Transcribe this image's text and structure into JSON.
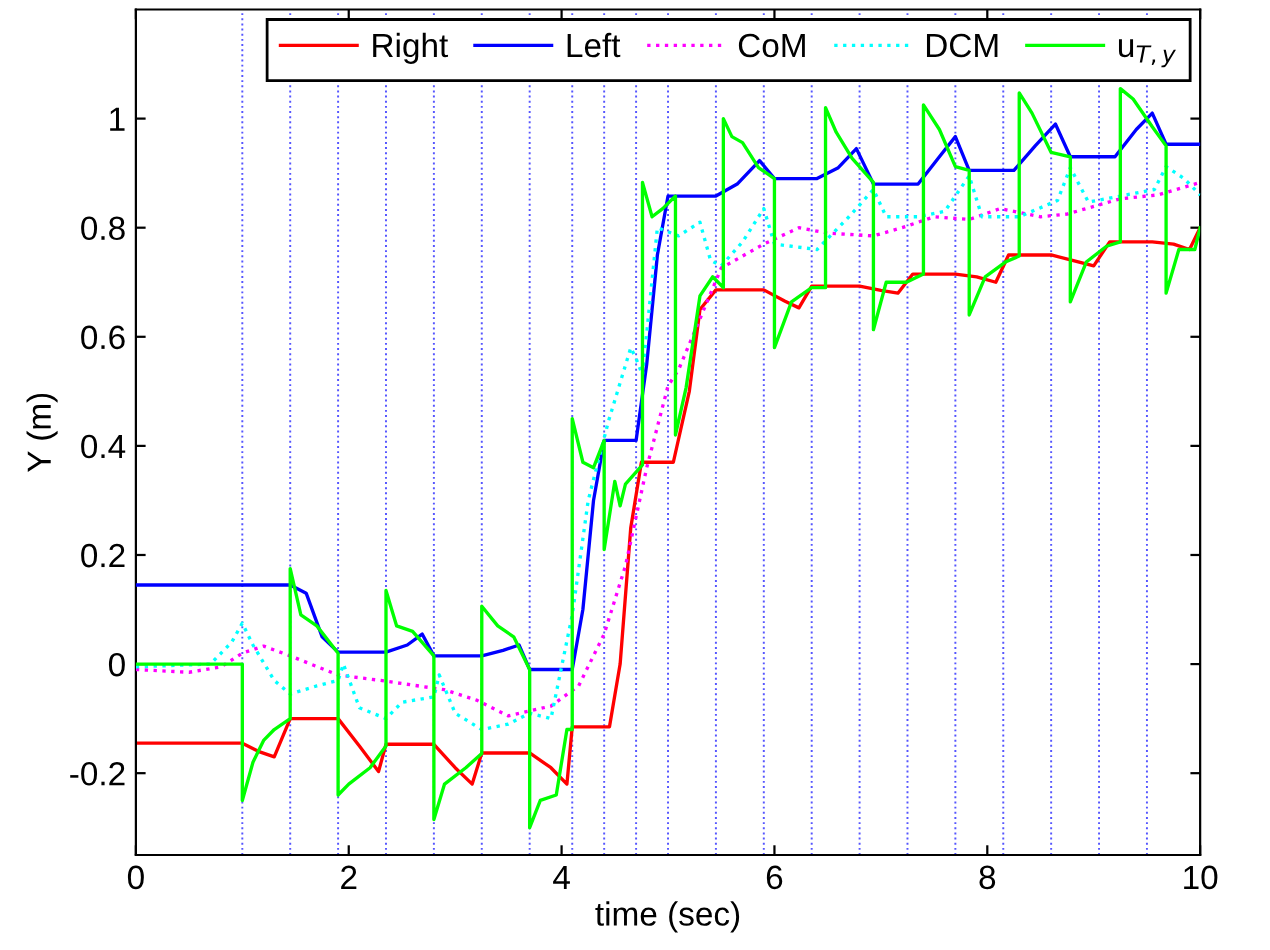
{
  "chart_data": {
    "type": "line",
    "xlabel": "time (sec)",
    "ylabel": "Y (m)",
    "xlim": [
      0,
      10
    ],
    "ylim": [
      -0.35,
      1.2
    ],
    "xticks": [
      0,
      2,
      4,
      6,
      8,
      10
    ],
    "yticks": [
      -0.2,
      0,
      0.2,
      0.4,
      0.6,
      0.8,
      1
    ],
    "grid": false,
    "legend": "top right",
    "marker": "none",
    "series": [
      {
        "name": "Right",
        "color": "#ff0000",
        "line_style": "solid",
        "x": [
          0,
          1.0,
          1.15,
          1.3,
          1.45,
          1.9,
          2.1,
          2.28,
          2.35,
          2.8,
          3.0,
          3.16,
          3.25,
          3.7,
          3.9,
          4.05,
          4.1,
          4.45,
          4.55,
          4.65,
          4.75,
          5.05,
          5.2,
          5.3,
          5.45,
          5.9,
          6.1,
          6.23,
          6.35,
          6.8,
          7.0,
          7.16,
          7.3,
          7.7,
          7.9,
          8.08,
          8.2,
          8.6,
          8.8,
          9.0,
          9.15,
          9.55,
          9.75,
          9.9,
          10
        ],
        "values": [
          -0.145,
          -0.145,
          -0.16,
          -0.17,
          -0.1,
          -0.1,
          -0.15,
          -0.197,
          -0.147,
          -0.147,
          -0.19,
          -0.22,
          -0.163,
          -0.163,
          -0.19,
          -0.22,
          -0.115,
          -0.115,
          0.0,
          0.25,
          0.37,
          0.37,
          0.5,
          0.65,
          0.686,
          0.686,
          0.665,
          0.653,
          0.693,
          0.693,
          0.685,
          0.68,
          0.715,
          0.715,
          0.71,
          0.7,
          0.75,
          0.75,
          0.74,
          0.73,
          0.774,
          0.774,
          0.77,
          0.76,
          0.8
        ]
      },
      {
        "name": "Left",
        "color": "#0000ff",
        "line_style": "solid",
        "x": [
          0,
          1.45,
          1.6,
          1.75,
          1.9,
          2.35,
          2.55,
          2.69,
          2.8,
          3.25,
          3.45,
          3.6,
          3.7,
          4.1,
          4.2,
          4.3,
          4.4,
          4.7,
          4.8,
          4.9,
          5.0,
          5.45,
          5.65,
          5.86,
          6.0,
          6.4,
          6.6,
          6.77,
          6.93,
          7.35,
          7.55,
          7.7,
          7.83,
          8.25,
          8.45,
          8.64,
          8.78,
          9.2,
          9.4,
          9.55,
          9.68,
          10
        ],
        "values": [
          0.145,
          0.145,
          0.13,
          0.05,
          0.022,
          0.022,
          0.035,
          0.055,
          0.015,
          0.015,
          0.025,
          0.035,
          -0.01,
          -0.01,
          0.1,
          0.3,
          0.41,
          0.41,
          0.55,
          0.75,
          0.858,
          0.858,
          0.88,
          0.923,
          0.89,
          0.89,
          0.91,
          0.945,
          0.88,
          0.88,
          0.93,
          0.967,
          0.905,
          0.905,
          0.95,
          0.99,
          0.93,
          0.93,
          0.98,
          1.01,
          0.953,
          0.953
        ]
      },
      {
        "name": "CoM",
        "color": "#ff00ff",
        "line_style": "dotted",
        "x": [
          0,
          0.5,
          0.8,
          1.0,
          1.2,
          1.45,
          1.9,
          2.3,
          2.9,
          3.2,
          3.5,
          3.9,
          4.16,
          4.4,
          4.6,
          4.8,
          5.0,
          5.1,
          5.5,
          5.9,
          6.23,
          6.5,
          6.93,
          7.2,
          7.5,
          7.83,
          8.12,
          8.5,
          8.75,
          9.25,
          9.6,
          10
        ],
        "values": [
          -0.01,
          -0.015,
          -0.005,
          0.02,
          0.033,
          0.015,
          -0.02,
          -0.03,
          -0.047,
          -0.066,
          -0.095,
          -0.077,
          -0.04,
          0.055,
          0.18,
          0.36,
          0.51,
          0.54,
          0.726,
          0.77,
          0.8,
          0.79,
          0.785,
          0.8,
          0.82,
          0.815,
          0.835,
          0.82,
          0.825,
          0.853,
          0.86,
          0.883
        ]
      },
      {
        "name": "DCM",
        "color": "#00ffff",
        "line_style": "dotted",
        "x": [
          0,
          0.7,
          0.9,
          1.0,
          1.1,
          1.3,
          1.45,
          1.7,
          1.9,
          1.95,
          2.1,
          2.35,
          2.5,
          2.8,
          2.85,
          3.0,
          3.25,
          3.5,
          3.7,
          3.9,
          4.1,
          4.25,
          4.44,
          4.65,
          4.7,
          4.76,
          4.9,
          5.1,
          5.3,
          5.4,
          5.5,
          5.7,
          5.9,
          6.0,
          6.4,
          6.7,
          6.93,
          7.05,
          7.35,
          7.6,
          7.83,
          7.95,
          8.3,
          8.66,
          8.78,
          8.95,
          9.25,
          9.57,
          9.68,
          9.85,
          10
        ],
        "values": [
          -0.005,
          0.0,
          0.04,
          0.075,
          0.035,
          -0.03,
          -0.055,
          -0.04,
          -0.03,
          0.0,
          -0.08,
          -0.1,
          -0.07,
          -0.06,
          -0.02,
          -0.09,
          -0.12,
          -0.11,
          -0.09,
          -0.1,
          0.09,
          0.3,
          0.445,
          0.58,
          0.56,
          0.53,
          0.8,
          0.785,
          0.81,
          0.74,
          0.73,
          0.774,
          0.835,
          0.77,
          0.76,
          0.82,
          0.87,
          0.82,
          0.82,
          0.83,
          0.895,
          0.82,
          0.82,
          0.85,
          0.91,
          0.847,
          0.858,
          0.87,
          0.912,
          0.89,
          0.86
        ]
      },
      {
        "name": "u$_{T,y}$",
        "color": "#00ff00",
        "line_style": "solid",
        "x": [
          0,
          1.0,
          1.0,
          1.1,
          1.2,
          1.3,
          1.45,
          1.45,
          1.55,
          1.7,
          1.9,
          1.9,
          2.0,
          2.2,
          2.35,
          2.35,
          2.45,
          2.6,
          2.8,
          2.8,
          2.9,
          3.1,
          3.25,
          3.25,
          3.4,
          3.55,
          3.7,
          3.7,
          3.8,
          3.95,
          4.05,
          4.1,
          4.1,
          4.2,
          4.3,
          4.4,
          4.4,
          4.5,
          4.55,
          4.6,
          4.76,
          4.76,
          4.85,
          4.95,
          5.07,
          5.07,
          5.17,
          5.3,
          5.42,
          5.52,
          5.52,
          5.6,
          5.7,
          5.85,
          6.0,
          6.0,
          6.16,
          6.35,
          6.48,
          6.48,
          6.58,
          6.73,
          6.93,
          6.93,
          7.05,
          7.24,
          7.4,
          7.4,
          7.55,
          7.7,
          7.83,
          7.83,
          7.98,
          8.17,
          8.3,
          8.3,
          8.42,
          8.6,
          8.78,
          8.78,
          8.93,
          9.12,
          9.25,
          9.25,
          9.37,
          9.55,
          9.68,
          9.68,
          9.8,
          9.95,
          10
        ],
        "values": [
          0,
          0,
          -0.25,
          -0.18,
          -0.14,
          -0.12,
          -0.1,
          0.175,
          0.09,
          0.07,
          0.02,
          -0.24,
          -0.22,
          -0.19,
          -0.15,
          0.135,
          0.07,
          0.06,
          0.015,
          -0.285,
          -0.22,
          -0.19,
          -0.164,
          0.106,
          0.07,
          0.05,
          -0.01,
          -0.3,
          -0.25,
          -0.24,
          -0.12,
          -0.12,
          0.45,
          0.37,
          0.36,
          0.41,
          0.21,
          0.335,
          0.29,
          0.33,
          0.365,
          0.883,
          0.82,
          0.835,
          0.858,
          0.42,
          0.507,
          0.675,
          0.71,
          0.69,
          1.0,
          0.967,
          0.956,
          0.91,
          0.89,
          0.58,
          0.664,
          0.69,
          0.69,
          1.02,
          0.975,
          0.927,
          0.883,
          0.613,
          0.7,
          0.7,
          0.715,
          1.025,
          0.98,
          0.912,
          0.905,
          0.64,
          0.71,
          0.737,
          0.748,
          1.047,
          1.01,
          0.938,
          0.93,
          0.664,
          0.737,
          0.766,
          0.774,
          1.055,
          1.036,
          0.985,
          0.95,
          0.68,
          0.76,
          0.76,
          0.8
        ]
      }
    ],
    "ref_lines": [
      {
        "axis": "x",
        "value": 1.0,
        "color": "#5555ff",
        "line_style": "dotted"
      },
      {
        "axis": "x",
        "value": 1.45,
        "color": "#5555ff",
        "line_style": "dotted"
      },
      {
        "axis": "x",
        "value": 1.9,
        "color": "#5555ff",
        "line_style": "dotted"
      },
      {
        "axis": "x",
        "value": 2.35,
        "color": "#5555ff",
        "line_style": "dotted"
      },
      {
        "axis": "x",
        "value": 2.8,
        "color": "#5555ff",
        "line_style": "dotted"
      },
      {
        "axis": "x",
        "value": 3.25,
        "color": "#5555ff",
        "line_style": "dotted"
      },
      {
        "axis": "x",
        "value": 3.7,
        "color": "#5555ff",
        "line_style": "dotted"
      },
      {
        "axis": "x",
        "value": 4.1,
        "color": "#5555ff",
        "line_style": "dotted"
      },
      {
        "axis": "x",
        "value": 4.4,
        "color": "#5555ff",
        "line_style": "dotted"
      },
      {
        "axis": "x",
        "value": 4.7,
        "color": "#5555ff",
        "line_style": "dotted"
      },
      {
        "axis": "x",
        "value": 5.0,
        "color": "#5555ff",
        "line_style": "dotted"
      },
      {
        "axis": "x",
        "value": 5.45,
        "color": "#5555ff",
        "line_style": "dotted"
      },
      {
        "axis": "x",
        "value": 5.9,
        "color": "#5555ff",
        "line_style": "dotted"
      },
      {
        "axis": "x",
        "value": 6.35,
        "color": "#5555ff",
        "line_style": "dotted"
      },
      {
        "axis": "x",
        "value": 6.8,
        "color": "#5555ff",
        "line_style": "dotted"
      },
      {
        "axis": "x",
        "value": 7.25,
        "color": "#5555ff",
        "line_style": "dotted"
      },
      {
        "axis": "x",
        "value": 7.7,
        "color": "#5555ff",
        "line_style": "dotted"
      },
      {
        "axis": "x",
        "value": 8.15,
        "color": "#5555ff",
        "line_style": "dotted"
      },
      {
        "axis": "x",
        "value": 8.6,
        "color": "#5555ff",
        "line_style": "dotted"
      },
      {
        "axis": "x",
        "value": 9.05,
        "color": "#5555ff",
        "line_style": "dotted"
      },
      {
        "axis": "x",
        "value": 9.5,
        "color": "#5555ff",
        "line_style": "dotted"
      }
    ]
  }
}
